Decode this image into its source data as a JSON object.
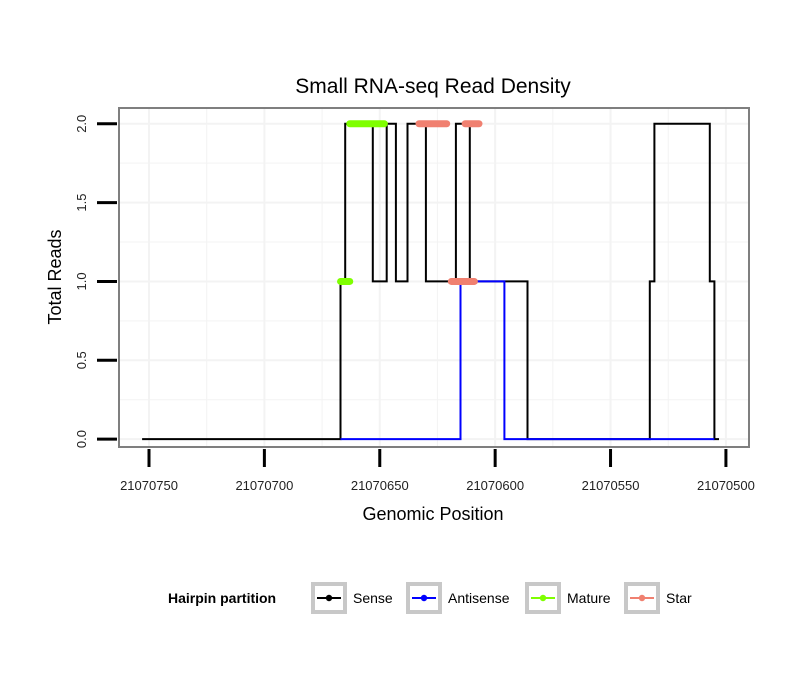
{
  "chart_data": {
    "type": "line",
    "title": "Small RNA-seq Read Density",
    "xlabel": "Genomic Position",
    "ylabel": "Total Reads",
    "x_reversed": true,
    "xlim": [
      21070763,
      21070490
    ],
    "ylim": [
      -0.05,
      2.1
    ],
    "x_ticks": [
      21070750,
      21070700,
      21070650,
      21070600,
      21070550,
      21070500
    ],
    "x_tick_labels": [
      "21070750",
      "21070700",
      "21070650",
      "21070600",
      "21070550",
      "21070500"
    ],
    "y_ticks": [
      0,
      0.5,
      1,
      1.5,
      2
    ],
    "y_tick_labels": [
      "0.0",
      "0.5",
      "1.0",
      "1.5",
      "2.0"
    ],
    "series": [
      {
        "name": "Sense",
        "color": "#000000",
        "step": true,
        "x": [
          21070753,
          21070667,
          21070665,
          21070663,
          21070653,
          21070647,
          21070643,
          21070638,
          21070635,
          21070633,
          21070630,
          21070617,
          21070613,
          21070611,
          21070606,
          21070586,
          21070585,
          21070533,
          21070531,
          21070529,
          21070507,
          21070505,
          21070503
        ],
        "y": [
          0,
          1,
          2,
          2,
          1,
          2,
          1,
          2,
          2,
          2,
          1,
          2,
          2,
          1,
          1,
          0,
          0,
          1,
          2,
          2,
          1,
          0,
          0
        ]
      },
      {
        "name": "Antisense",
        "color": "#0000ff",
        "step": true,
        "x": [
          21070667,
          21070615,
          21070596,
          21070595,
          21070505
        ],
        "y": [
          0,
          1,
          0,
          0,
          0
        ]
      },
      {
        "name": "Mature",
        "color": "#7fff00",
        "segments": [
          {
            "x": [
              21070667,
              21070663
            ],
            "y": [
              1,
              1
            ]
          },
          {
            "x": [
              21070663,
              21070648
            ],
            "y": [
              2,
              2
            ]
          }
        ]
      },
      {
        "name": "Star",
        "color": "#f08070",
        "segments": [
          {
            "x": [
              21070619,
              21070609
            ],
            "y": [
              1,
              1
            ]
          },
          {
            "x": [
              21070633,
              21070621
            ],
            "y": [
              2,
              2
            ]
          },
          {
            "x": [
              21070613,
              21070607
            ],
            "y": [
              2,
              2
            ]
          }
        ]
      }
    ],
    "legend": {
      "position": "bottom",
      "title": "Hairpin partition",
      "entries": [
        "Sense",
        "Antisense",
        "Mature",
        "Star"
      ]
    }
  }
}
